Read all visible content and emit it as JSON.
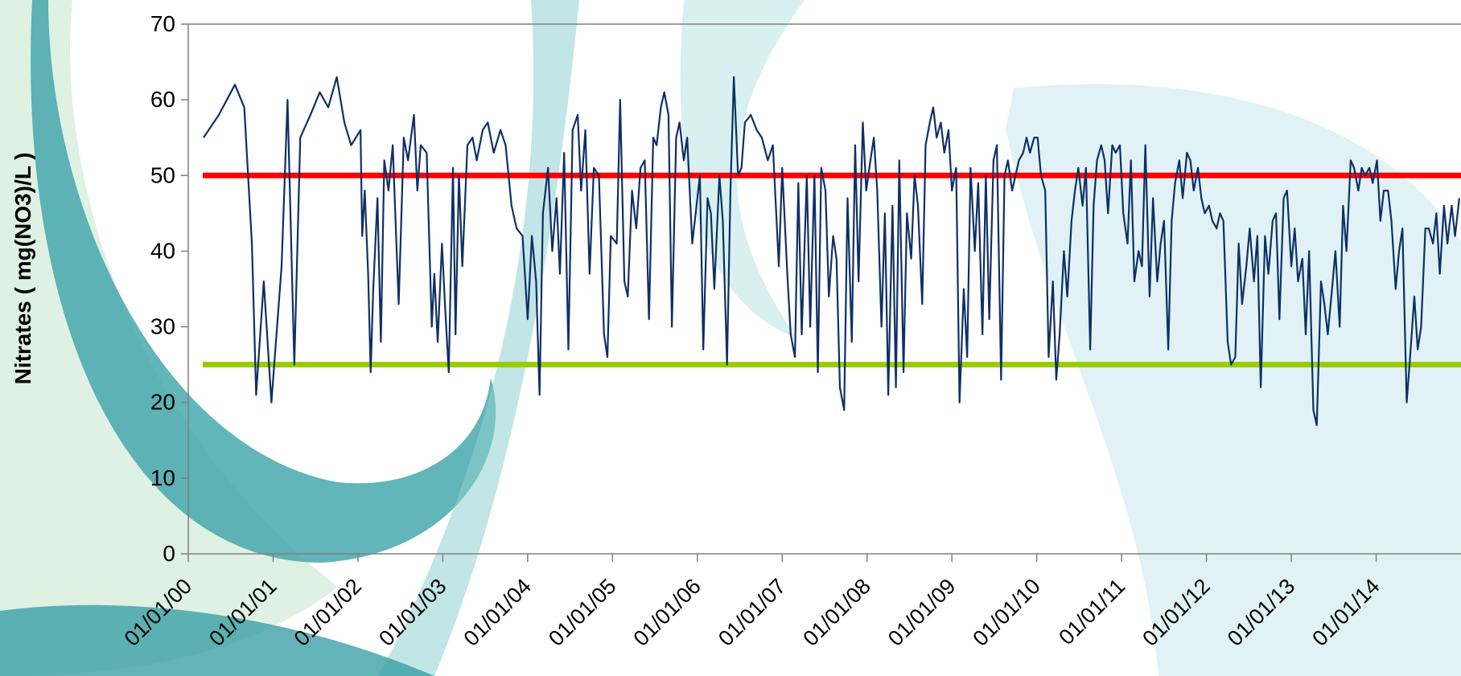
{
  "chart_data": {
    "type": "line",
    "y_label": "Nitrates ( mg(NO3)/L )",
    "xlim": [
      2000,
      2015
    ],
    "xticks": [
      {
        "value": 2000,
        "label": "01/01/00"
      },
      {
        "value": 2001,
        "label": "01/01/01"
      },
      {
        "value": 2002,
        "label": "01/01/02"
      },
      {
        "value": 2003,
        "label": "01/01/03"
      },
      {
        "value": 2004,
        "label": "01/01/04"
      },
      {
        "value": 2005,
        "label": "01/01/05"
      },
      {
        "value": 2006,
        "label": "01/01/06"
      },
      {
        "value": 2007,
        "label": "01/01/07"
      },
      {
        "value": 2008,
        "label": "01/01/08"
      },
      {
        "value": 2009,
        "label": "01/01/09"
      },
      {
        "value": 2010,
        "label": "01/01/10"
      },
      {
        "value": 2011,
        "label": "01/01/11"
      },
      {
        "value": 2012,
        "label": "01/01/12"
      },
      {
        "value": 2013,
        "label": "01/01/13"
      },
      {
        "value": 2014,
        "label": "01/01/14"
      }
    ],
    "ylim": [
      0,
      70
    ],
    "yticks": [
      0,
      10,
      20,
      30,
      40,
      50,
      60,
      70
    ],
    "reference_lines": [
      {
        "value": 50,
        "color": "#ff0000"
      },
      {
        "value": 25,
        "color": "#99cc00"
      }
    ],
    "series": [
      {
        "color": "#0f2f66",
        "x": [
          2000.18,
          2000.36,
          2000.55,
          2000.66,
          2000.75,
          2000.8,
          2000.89,
          2000.98,
          2001.1,
          2001.17,
          2001.25,
          2001.32,
          2001.44,
          2001.55,
          2001.65,
          2001.75,
          2001.84,
          2001.92,
          2002.03,
          2002.05,
          2002.08,
          2002.12,
          2002.15,
          2002.18,
          2002.23,
          2002.27,
          2002.31,
          2002.36,
          2002.41,
          2002.48,
          2002.54,
          2002.59,
          2002.66,
          2002.7,
          2002.74,
          2002.81,
          2002.87,
          2002.9,
          2002.94,
          2002.99,
          2003.03,
          2003.07,
          2003.12,
          2003.15,
          2003.19,
          2003.23,
          2003.29,
          2003.35,
          2003.4,
          2003.47,
          2003.53,
          2003.6,
          2003.68,
          2003.74,
          2003.81,
          2003.87,
          2003.94,
          2004.0,
          2004.05,
          2004.1,
          2004.14,
          2004.18,
          2004.24,
          2004.29,
          2004.34,
          2004.38,
          2004.43,
          2004.48,
          2004.53,
          2004.59,
          2004.63,
          2004.68,
          2004.73,
          2004.78,
          2004.84,
          2004.9,
          2004.94,
          2004.98,
          2005.05,
          2005.09,
          2005.14,
          2005.18,
          2005.23,
          2005.28,
          2005.33,
          2005.38,
          2005.43,
          2005.48,
          2005.52,
          2005.57,
          2005.61,
          2005.66,
          2005.7,
          2005.75,
          2005.79,
          2005.84,
          2005.88,
          2005.94,
          2005.98,
          2006.03,
          2006.07,
          2006.12,
          2006.16,
          2006.2,
          2006.26,
          2006.3,
          2006.35,
          2006.39,
          2006.43,
          2006.48,
          2006.52,
          2006.56,
          2006.63,
          2006.7,
          2006.76,
          2006.83,
          2006.89,
          2006.96,
          2007.0,
          2007.06,
          2007.1,
          2007.15,
          2007.19,
          2007.23,
          2007.29,
          2007.33,
          2007.38,
          2007.42,
          2007.46,
          2007.51,
          2007.55,
          2007.6,
          2007.64,
          2007.68,
          2007.73,
          2007.77,
          2007.82,
          2007.86,
          2007.9,
          2007.95,
          2007.99,
          2008.04,
          2008.08,
          2008.12,
          2008.17,
          2008.21,
          2008.25,
          2008.3,
          2008.34,
          2008.38,
          2008.43,
          2008.47,
          2008.52,
          2008.56,
          2008.6,
          2008.65,
          2008.69,
          2008.74,
          2008.78,
          2008.82,
          2008.87,
          2008.91,
          2008.96,
          2009.0,
          2009.05,
          2009.09,
          2009.14,
          2009.18,
          2009.22,
          2009.27,
          2009.31,
          2009.36,
          2009.4,
          2009.44,
          2009.49,
          2009.53,
          2009.58,
          2009.62,
          2009.66,
          2009.71,
          2009.75,
          2009.79,
          2009.84,
          2009.88,
          2009.92,
          2009.97,
          2010.01,
          2010.05,
          2010.1,
          2010.14,
          2010.19,
          2010.23,
          2010.27,
          2010.32,
          2010.36,
          2010.41,
          2010.45,
          2010.49,
          2010.54,
          2010.58,
          2010.63,
          2010.67,
          2010.71,
          2010.76,
          2010.8,
          2010.84,
          2010.89,
          2010.93,
          2010.98,
          2011.02,
          2011.07,
          2011.11,
          2011.15,
          2011.2,
          2011.24,
          2011.28,
          2011.33,
          2011.37,
          2011.42,
          2011.46,
          2011.5,
          2011.55,
          2011.59,
          2011.63,
          2011.68,
          2011.72,
          2011.77,
          2011.81,
          2011.85,
          2011.9,
          2011.94,
          2011.98,
          2012.03,
          2012.07,
          2012.12,
          2012.16,
          2012.2,
          2012.25,
          2012.29,
          2012.34,
          2012.38,
          2012.42,
          2012.47,
          2012.51,
          2012.56,
          2012.6,
          2012.64,
          2012.69,
          2012.73,
          2012.78,
          2012.82,
          2012.86,
          2012.91,
          2012.95,
          2013.0,
          2013.04,
          2013.08,
          2013.13,
          2013.17,
          2013.21,
          2013.26,
          2013.3,
          2013.35,
          2013.39,
          2013.43,
          2013.48,
          2013.52,
          2013.57,
          2013.61,
          2013.65,
          2013.7,
          2013.74,
          2013.79,
          2013.83,
          2013.87,
          2013.92,
          2013.96,
          2014.01,
          2014.05,
          2014.09,
          2014.14,
          2014.18,
          2014.23,
          2014.27,
          2014.31,
          2014.36,
          2014.4,
          2014.45,
          2014.49,
          2014.53,
          2014.58,
          2014.62,
          2014.67,
          2014.71,
          2014.75,
          2014.8,
          2014.84,
          2014.89,
          2014.93,
          2014.98
        ],
        "values": [
          55,
          58,
          62,
          59,
          41,
          21,
          36,
          20,
          38,
          60,
          25,
          55,
          58,
          61,
          59,
          63,
          57,
          54,
          56,
          42,
          48,
          37,
          24,
          35,
          47,
          28,
          52,
          48,
          54,
          33,
          55,
          52,
          58,
          48,
          54,
          53,
          30,
          37,
          28,
          41,
          32,
          24,
          51,
          29,
          50,
          38,
          54,
          55,
          52,
          56,
          57,
          53,
          56,
          54,
          46,
          43,
          42,
          31,
          42,
          36,
          21,
          45,
          51,
          40,
          47,
          37,
          53,
          27,
          56,
          58,
          48,
          56,
          37,
          51,
          50,
          29,
          26,
          42,
          41,
          60,
          36,
          34,
          48,
          43,
          51,
          52,
          31,
          55,
          54,
          59,
          61,
          58,
          30,
          55,
          57,
          52,
          55,
          41,
          45,
          50,
          27,
          47,
          45,
          35,
          50,
          44,
          25,
          48,
          63,
          50,
          51,
          57,
          58,
          56,
          55,
          52,
          54,
          38,
          51,
          37,
          29,
          26,
          49,
          29,
          50,
          30,
          50,
          24,
          51,
          48,
          34,
          42,
          39,
          22,
          19,
          47,
          28,
          54,
          36,
          57,
          48,
          52,
          55,
          48,
          30,
          45,
          21,
          46,
          22,
          52,
          24,
          45,
          39,
          50,
          46,
          33,
          54,
          57,
          59,
          55,
          57,
          53,
          56,
          48,
          51,
          20,
          35,
          26,
          51,
          40,
          49,
          29,
          50,
          31,
          52,
          54,
          23,
          50,
          52,
          48,
          50,
          52,
          53,
          55,
          53,
          55,
          55,
          50,
          48,
          26,
          36,
          23,
          29,
          40,
          34,
          44,
          48,
          51,
          46,
          51,
          27,
          46,
          52,
          54,
          52,
          45,
          54,
          53,
          54,
          45,
          41,
          52,
          36,
          40,
          38,
          54,
          34,
          47,
          36,
          41,
          44,
          27,
          44,
          49,
          52,
          47,
          53,
          52,
          48,
          51,
          47,
          45,
          46,
          44,
          43,
          45,
          44,
          28,
          25,
          26,
          41,
          33,
          38,
          43,
          36,
          42,
          22,
          42,
          37,
          44,
          45,
          31,
          47,
          48,
          38,
          43,
          36,
          39,
          29,
          40,
          19,
          17,
          36,
          33,
          29,
          35,
          40,
          30,
          46,
          40,
          52,
          51,
          48,
          51,
          50,
          51,
          49,
          52,
          44,
          48,
          48,
          44,
          35,
          40,
          43,
          20,
          26,
          34,
          27,
          30,
          43,
          43,
          41,
          45,
          37,
          46,
          41,
          46,
          42,
          47
        ]
      }
    ]
  }
}
